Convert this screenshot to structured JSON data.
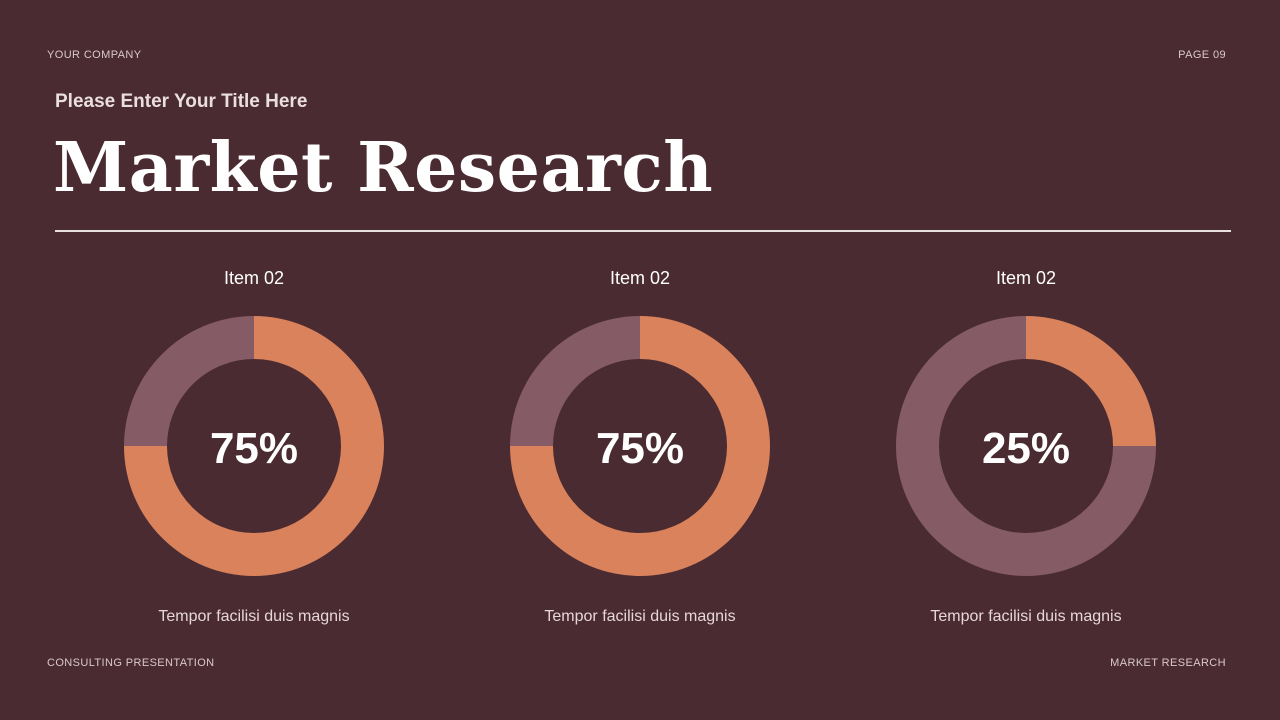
{
  "header": {
    "company": "YOUR COMPANY",
    "page": "PAGE 09",
    "subtitle": "Please Enter Your Title Here",
    "title": "Market Research"
  },
  "footer": {
    "left": "CONSULTING PRESENTATION",
    "right": "MARKET RESEARCH"
  },
  "colors": {
    "background": "#4a2b31",
    "accent": "#d9825b",
    "remainder": "#855c65"
  },
  "chart_data": [
    {
      "type": "pie",
      "title": "Item 02",
      "value": 75,
      "value_label": "75%",
      "caption": "Tempor facilisi duis magnis"
    },
    {
      "type": "pie",
      "title": "Item 02",
      "value": 75,
      "value_label": "75%",
      "caption": "Tempor facilisi duis magnis"
    },
    {
      "type": "pie",
      "title": "Item 02",
      "value": 25,
      "value_label": "25%",
      "caption": "Tempor facilisi duis magnis"
    }
  ]
}
